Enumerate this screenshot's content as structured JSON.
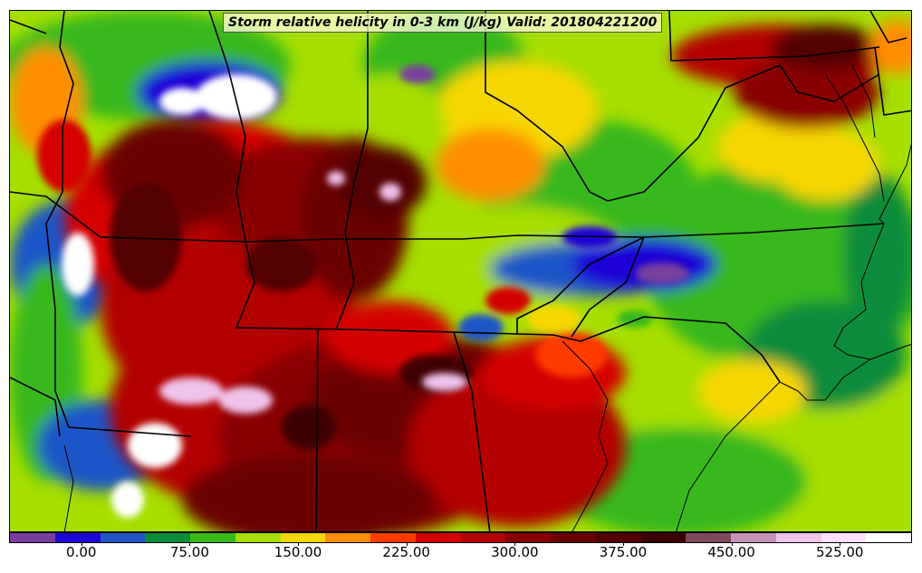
{
  "title": "Storm relative helicity in 0-3 km (J/kg) Valid: 201804221200",
  "colorbar": {
    "colors": [
      "#7a3f9e",
      "#1c06d6",
      "#1f55c8",
      "#0d8d3a",
      "#39b81a",
      "#a6df00",
      "#f5d600",
      "#ff8d00",
      "#ff3b00",
      "#d40000",
      "#b30000",
      "#8a0000",
      "#6b0000",
      "#520000",
      "#3c0000",
      "#7e4a5c",
      "#c793b8",
      "#efc3ec",
      "#ffe1ff",
      "#ffffff"
    ],
    "ticks": [
      "0.00",
      "75.00",
      "150.00",
      "225.00",
      "300.00",
      "375.00",
      "450.00",
      "525.00"
    ],
    "min": -50,
    "max": 575
  },
  "legend_icon": "map-field"
}
